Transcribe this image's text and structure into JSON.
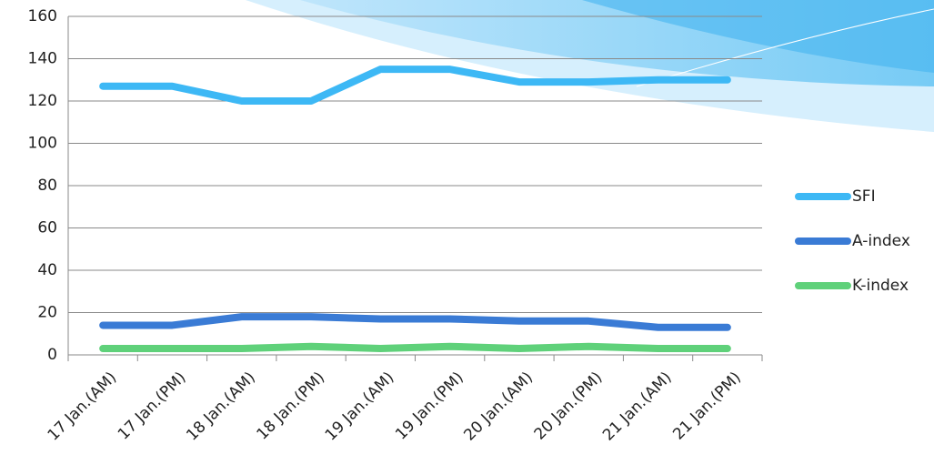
{
  "chart_data": {
    "type": "line",
    "categories": [
      "17 Jan.(AM)",
      "17 Jan.(PM)",
      "18 Jan.(AM)",
      "18 Jan.(PM)",
      "19 Jan.(AM)",
      "19 Jan.(PM)",
      "20 Jan.(AM)",
      "20 Jan.(PM)",
      "21 Jan.(AM)",
      "21 Jan.(PM)"
    ],
    "series": [
      {
        "name": "SFI",
        "color": "#3db8f5",
        "values": [
          127,
          127,
          120,
          120,
          135,
          135,
          129,
          129,
          130,
          130
        ]
      },
      {
        "name": "A-index",
        "color": "#3a7bd5",
        "values": [
          14,
          14,
          18,
          18,
          17,
          17,
          16,
          16,
          13,
          13
        ]
      },
      {
        "name": "K-index",
        "color": "#5fd17a",
        "values": [
          3,
          3,
          3,
          4,
          3,
          4,
          3,
          4,
          3,
          3
        ]
      }
    ],
    "ylim": [
      0,
      160
    ],
    "yticks": [
      0,
      20,
      40,
      60,
      80,
      100,
      120,
      140,
      160
    ],
    "grid": true
  }
}
